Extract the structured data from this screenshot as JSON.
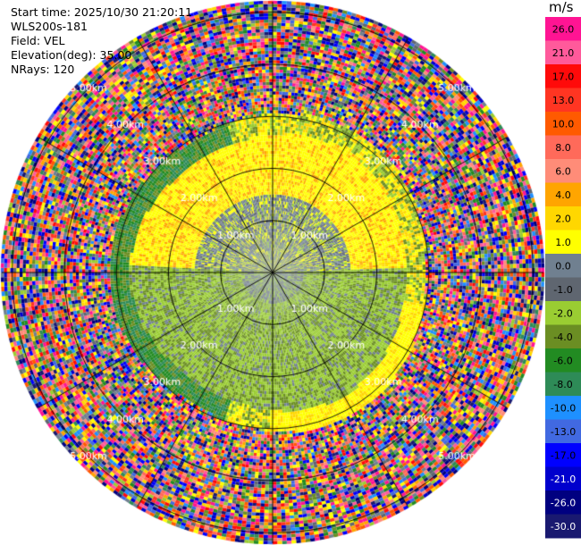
{
  "info": {
    "start_time": "Start time: 2025/10/30 21:20:11",
    "site": "WLS200s-181",
    "field": "Field: VEL",
    "elevation": "Elevation(deg): 35.00",
    "nrays": "NRays: 120"
  },
  "colorbar": {
    "unit": "m/s",
    "levels": [
      {
        "label": "26.0",
        "color": "#ff1493"
      },
      {
        "label": "21.0",
        "color": "#ff5a9b"
      },
      {
        "label": "17.0",
        "color": "#ff0a0a"
      },
      {
        "label": "13.0",
        "color": "#ff3522"
      },
      {
        "label": "10.0",
        "color": "#ff5a00"
      },
      {
        "label": "8.0",
        "color": "#ff6a5a"
      },
      {
        "label": "6.0",
        "color": "#ff8c78"
      },
      {
        "label": "4.0",
        "color": "#ffa500"
      },
      {
        "label": "2.0",
        "color": "#ffd700"
      },
      {
        "label": "1.0",
        "color": "#ffff00"
      },
      {
        "label": "0.0",
        "color": "#708090"
      },
      {
        "label": "-1.0",
        "color": "#5f6670"
      },
      {
        "label": "-2.0",
        "color": "#9acd32"
      },
      {
        "label": "-4.0",
        "color": "#6b8e23"
      },
      {
        "label": "-6.0",
        "color": "#228b22"
      },
      {
        "label": "-8.0",
        "color": "#2e8b57"
      },
      {
        "label": "-10.0",
        "color": "#1e90ff"
      },
      {
        "label": "-13.0",
        "color": "#4169e1"
      },
      {
        "label": "-17.0",
        "color": "#0000ff"
      },
      {
        "label": "-21.0",
        "color": "#0000cd"
      },
      {
        "label": "-26.0",
        "color": "#000080"
      },
      {
        "label": "-30.0",
        "color": "#191970"
      }
    ]
  },
  "chart_data": {
    "type": "heatmap",
    "projection": "polar PPI",
    "field": "VEL",
    "units": "m/s",
    "elevation_deg": 35.0,
    "n_rays": 120,
    "range_rings_km": [
      1.0,
      2.0,
      3.0,
      4.0,
      5.0
    ],
    "ring_labels": [
      "1.00km",
      "2.00km",
      "3.00km",
      "4.00km",
      "5.00km"
    ],
    "max_range_km": 5.2,
    "spokes_deg": [
      0,
      30,
      60,
      90,
      120,
      150,
      180,
      210,
      240,
      270,
      300,
      330
    ],
    "velocity_structure": {
      "north_half_inner_ring_lt_1_5km": "0.0 to -1.0 (gray)",
      "north_half_1_5_to_2_5km": "1.0 to 4.0 (yellow/orange)",
      "south_half_inner_lt_2_5km": "-2.0 to -4.0 (green)",
      "west_edge_2_5_to_3km": "-6.0 to -8.0 (dark green)",
      "east_south_edge_2_5_to_3km": "1.0 (yellow)",
      "beyond_3km": "noisy, full range -30.0 to 26.0"
    }
  }
}
